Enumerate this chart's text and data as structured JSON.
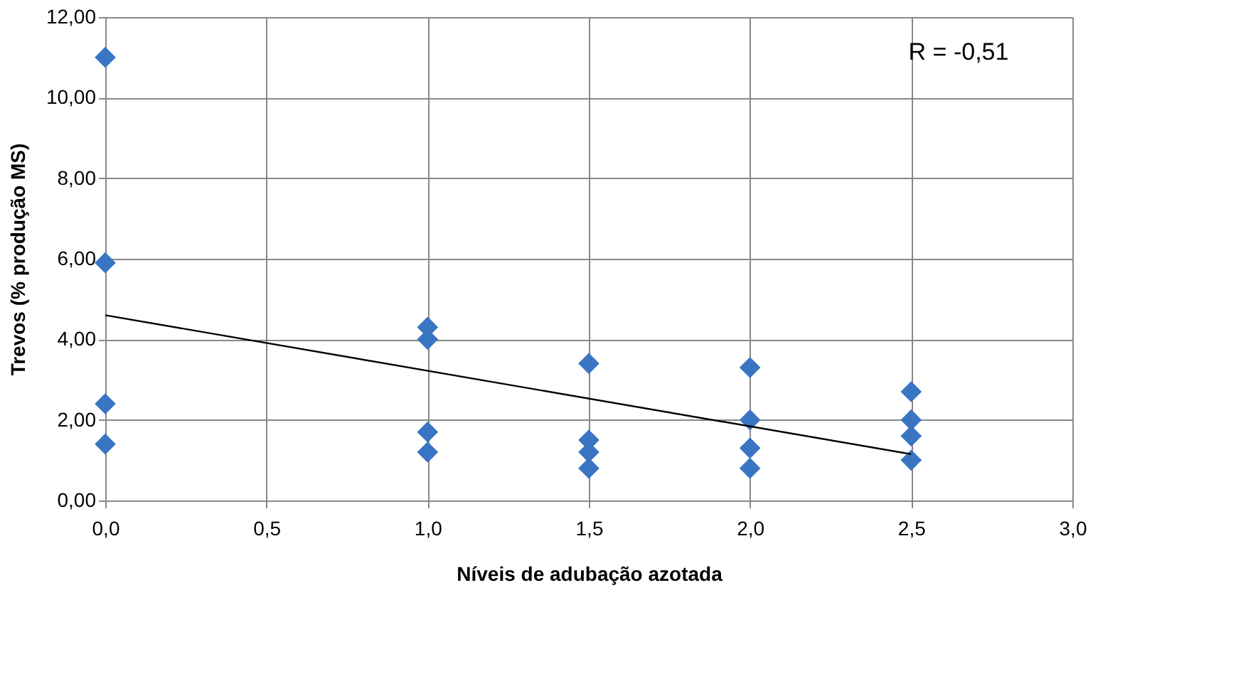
{
  "chart_data": {
    "type": "scatter",
    "xlabel": "Níveis de adubação azotada",
    "ylabel": "Trevos (% produção MS)",
    "series": [
      {
        "color": "#3a75c4",
        "x": [
          0,
          0,
          0,
          0,
          1,
          1,
          1,
          1,
          1.5,
          1.5,
          1.5,
          1.5,
          2,
          2,
          2,
          2,
          2.5,
          2.5,
          2.5,
          2.5
        ],
        "values": [
          11.0,
          5.9,
          2.4,
          1.4,
          4.3,
          4.0,
          1.7,
          1.2,
          3.4,
          1.5,
          1.2,
          0.8,
          3.3,
          2.0,
          1.3,
          0.8,
          2.7,
          2.0,
          1.6,
          1.0
        ],
        "marker": "diamond"
      },
      {
        "type": "line",
        "color": "#000000",
        "x": [
          0,
          2.5
        ],
        "values": [
          4.6,
          1.15
        ],
        "marker": "none",
        "line_style": "solid"
      }
    ],
    "annotations": [
      "R = -0,51"
    ],
    "xlim": [
      0,
      3
    ],
    "ylim": [
      0,
      12
    ],
    "xticks": [
      {
        "value": 0,
        "label": "0,0"
      },
      {
        "value": 0.5,
        "label": "0,5"
      },
      {
        "value": 1,
        "label": "1,0"
      },
      {
        "value": 1.5,
        "label": "1,5"
      },
      {
        "value": 2,
        "label": "2,0"
      },
      {
        "value": 2.5,
        "label": "2,5"
      },
      {
        "value": 3,
        "label": "3,0"
      }
    ],
    "yticks": [
      {
        "value": 0,
        "label": "0,00"
      },
      {
        "value": 2,
        "label": "2,00"
      },
      {
        "value": 4,
        "label": "4,00"
      },
      {
        "value": 6,
        "label": "6,00"
      },
      {
        "value": 8,
        "label": "8,00"
      },
      {
        "value": 10,
        "label": "10,00"
      },
      {
        "value": 12,
        "label": "12,00"
      }
    ],
    "grid": true
  }
}
